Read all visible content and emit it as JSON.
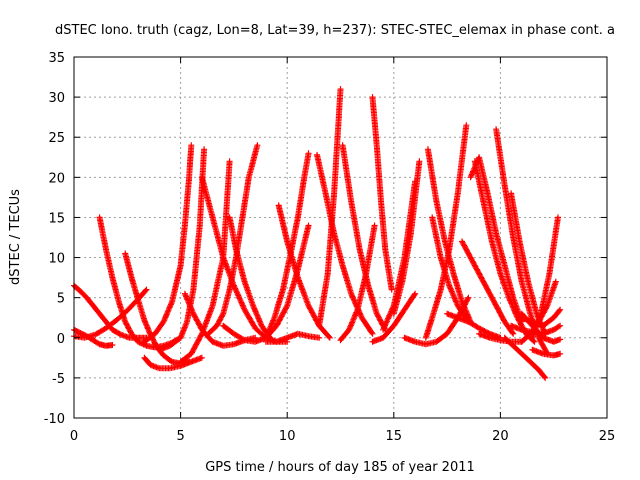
{
  "chart_data": {
    "type": "scatter",
    "title": "dSTEC Iono. truth (cagz, Lon=8, Lat=39, h=237): STEC-STEC_elemax in phase cont. a",
    "xlabel": "GPS time / hours of day 185 of year 2011",
    "ylabel": "dSTEC  / TECUs",
    "xlim": [
      0,
      25
    ],
    "ylim": [
      -10,
      35
    ],
    "xticks": [
      0,
      5,
      10,
      15,
      20,
      25
    ],
    "yticks": [
      -10,
      -5,
      0,
      5,
      10,
      15,
      20,
      25,
      30,
      35
    ],
    "grid": true,
    "marker": "+",
    "color": "#ff0000",
    "series": [
      {
        "x": [
          0.0,
          0.3,
          0.6,
          0.9,
          1.2,
          1.5,
          1.8,
          2.2,
          2.6,
          3.0,
          3.4
        ],
        "y": [
          6.5,
          5.8,
          5.0,
          4.0,
          3.0,
          2.0,
          1.0,
          0.4,
          0.0,
          0.0,
          0.0
        ]
      },
      {
        "x": [
          0.0,
          0.3,
          0.6,
          0.9,
          1.2,
          1.5,
          1.8
        ],
        "y": [
          1.0,
          0.6,
          0.2,
          -0.3,
          -0.8,
          -1.0,
          -0.9
        ]
      },
      {
        "x": [
          0.0,
          0.5,
          1.0,
          1.5,
          2.0,
          2.5,
          3.0,
          3.4
        ],
        "y": [
          0.2,
          0.0,
          0.4,
          1.2,
          2.2,
          3.4,
          4.8,
          6.0
        ]
      },
      {
        "x": [
          1.2,
          1.5,
          1.8,
          2.1,
          2.4,
          2.7,
          3.0,
          3.4,
          3.8,
          4.2,
          4.6,
          5.0
        ],
        "y": [
          15.0,
          11.0,
          7.5,
          4.5,
          2.0,
          0.5,
          -0.5,
          -1.0,
          -1.2,
          -1.0,
          -0.6,
          0.0
        ]
      },
      {
        "x": [
          2.4,
          2.7,
          3.0,
          3.3,
          3.6,
          3.9,
          4.2,
          4.6,
          5.0,
          5.4
        ],
        "y": [
          10.5,
          7.5,
          4.8,
          2.2,
          0.3,
          -1.2,
          -2.2,
          -3.0,
          -3.2,
          -3.0
        ]
      },
      {
        "x": [
          3.3,
          3.6,
          4.0,
          4.5,
          5.0,
          5.5,
          6.0
        ],
        "y": [
          -2.5,
          -3.4,
          -3.8,
          -3.8,
          -3.5,
          -3.0,
          -2.5
        ]
      },
      {
        "x": [
          3.3,
          3.8,
          4.2,
          4.6,
          5.0,
          5.2,
          5.4,
          5.5
        ],
        "y": [
          -0.5,
          0.5,
          2.0,
          4.5,
          9.0,
          14.0,
          20.0,
          24.0
        ]
      },
      {
        "x": [
          4.0,
          4.5,
          5.0,
          5.3,
          5.6,
          5.9,
          6.1
        ],
        "y": [
          -1.5,
          -1.0,
          0.0,
          2.0,
          6.0,
          14.0,
          23.5
        ]
      },
      {
        "x": [
          5.0,
          5.5,
          6.0,
          6.5,
          7.0,
          7.3
        ],
        "y": [
          -3.0,
          -2.0,
          0.5,
          4.0,
          10.0,
          22.0
        ]
      },
      {
        "x": [
          5.2,
          5.6,
          6.0,
          6.5,
          7.0,
          7.5,
          8.0,
          8.5
        ],
        "y": [
          5.5,
          3.0,
          1.0,
          -0.5,
          -1.0,
          -0.8,
          -0.3,
          0.0
        ]
      },
      {
        "x": [
          6.3,
          6.7,
          7.0,
          7.3,
          7.6,
          7.9,
          8.2,
          8.6
        ],
        "y": [
          0.5,
          1.5,
          3.0,
          6.0,
          10.0,
          15.0,
          20.0,
          24.0
        ]
      },
      {
        "x": [
          7.3,
          7.6,
          8.0,
          8.4,
          8.8,
          9.2
        ],
        "y": [
          15.0,
          11.0,
          7.0,
          4.0,
          1.5,
          0.0
        ]
      },
      {
        "x": [
          6.0,
          6.5,
          7.0,
          7.5,
          8.0,
          8.5,
          9.0,
          9.5,
          10.0
        ],
        "y": [
          20.0,
          15.0,
          10.0,
          6.5,
          3.5,
          1.2,
          0.0,
          -0.5,
          -0.5
        ]
      },
      {
        "x": [
          7.0,
          7.5,
          8.0,
          8.5,
          9.0,
          9.5,
          10.0,
          10.5,
          11.0
        ],
        "y": [
          1.5,
          0.5,
          -0.3,
          -0.5,
          0.0,
          1.5,
          4.0,
          8.5,
          14.0
        ]
      },
      {
        "x": [
          9.0,
          9.4,
          9.8,
          10.2,
          10.5,
          10.8,
          11.0
        ],
        "y": [
          0.0,
          2.5,
          6.0,
          11.0,
          15.0,
          20.0,
          23.0
        ]
      },
      {
        "x": [
          9.6,
          10.0,
          10.5,
          11.0,
          11.5,
          12.0
        ],
        "y": [
          16.5,
          12.0,
          7.5,
          4.0,
          1.5,
          0.0
        ]
      },
      {
        "x": [
          9.0,
          9.5,
          10.0,
          10.5,
          11.0,
          11.5
        ],
        "y": [
          -0.5,
          -0.5,
          0.0,
          0.5,
          0.2,
          0.0
        ]
      },
      {
        "x": [
          11.5,
          11.9,
          12.2,
          12.5
        ],
        "y": [
          1.5,
          8.0,
          18.0,
          31.0
        ]
      },
      {
        "x": [
          11.4,
          11.8,
          12.2,
          12.6,
          13.0,
          13.5,
          14.0
        ],
        "y": [
          22.8,
          18.0,
          13.0,
          9.0,
          5.5,
          2.5,
          0.5
        ]
      },
      {
        "x": [
          12.5,
          12.9,
          13.3,
          13.7,
          14.1
        ],
        "y": [
          -0.3,
          1.0,
          3.5,
          8.0,
          14.0
        ]
      },
      {
        "x": [
          12.6,
          13.0,
          13.4,
          13.8,
          14.2,
          14.6
        ],
        "y": [
          24.0,
          17.0,
          11.0,
          6.5,
          3.0,
          1.0
        ]
      },
      {
        "x": [
          14.0,
          14.2,
          14.4,
          14.6,
          14.9
        ],
        "y": [
          30.0,
          24.0,
          17.0,
          11.0,
          6.0
        ]
      },
      {
        "x": [
          14.0,
          14.5,
          15.0,
          15.5,
          16.0
        ],
        "y": [
          -0.5,
          0.0,
          1.5,
          3.5,
          5.5
        ]
      },
      {
        "x": [
          14.5,
          15.0,
          15.5,
          16.0
        ],
        "y": [
          1.0,
          4.0,
          10.0,
          19.5
        ]
      },
      {
        "x": [
          15.0,
          15.4,
          15.8,
          16.2
        ],
        "y": [
          3.0,
          7.0,
          13.0,
          22.0
        ]
      },
      {
        "x": [
          15.5,
          16.0,
          16.5,
          17.0,
          17.5,
          18.0,
          18.5
        ],
        "y": [
          0.0,
          -0.5,
          -0.8,
          -0.5,
          0.5,
          2.5,
          5.0
        ]
      },
      {
        "x": [
          16.5,
          16.8,
          17.2,
          17.6,
          18.0,
          18.4
        ],
        "y": [
          0.0,
          2.5,
          6.0,
          11.0,
          18.0,
          26.5
        ]
      },
      {
        "x": [
          16.6,
          17.0,
          17.4,
          17.8,
          18.2,
          18.6
        ],
        "y": [
          23.5,
          17.0,
          12.0,
          8.0,
          4.5,
          2.0
        ]
      },
      {
        "x": [
          16.8,
          17.2,
          17.6,
          18.0,
          18.5
        ],
        "y": [
          15.0,
          10.0,
          6.5,
          4.0,
          2.0
        ]
      },
      {
        "x": [
          18.2,
          18.6,
          19.0,
          19.4,
          19.8,
          20.2,
          20.6
        ],
        "y": [
          12.0,
          10.0,
          8.0,
          6.0,
          4.0,
          2.0,
          0.5
        ]
      },
      {
        "x": [
          17.5,
          18.0,
          18.5,
          19.0,
          19.5,
          20.0
        ],
        "y": [
          3.0,
          2.5,
          2.0,
          1.2,
          0.5,
          0.0
        ]
      },
      {
        "x": [
          18.6,
          19.0,
          19.4,
          19.8,
          20.2,
          20.6,
          21.0
        ],
        "y": [
          20.0,
          22.5,
          18.0,
          13.0,
          9.0,
          5.0,
          2.0
        ]
      },
      {
        "x": [
          18.8,
          19.2,
          19.6,
          20.0,
          20.4,
          20.8,
          21.2,
          21.6
        ],
        "y": [
          22.0,
          17.0,
          12.0,
          8.0,
          5.0,
          2.5,
          0.5,
          -0.5
        ]
      },
      {
        "x": [
          19.8,
          20.2,
          20.6,
          21.0,
          21.4,
          21.8,
          22.2
        ],
        "y": [
          26.0,
          19.0,
          12.5,
          7.0,
          3.0,
          0.0,
          -2.0
        ]
      },
      {
        "x": [
          20.2,
          20.6,
          21.0,
          21.4,
          21.8,
          22.1
        ],
        "y": [
          0.0,
          -1.0,
          -2.0,
          -3.0,
          -4.0,
          -5.0
        ]
      },
      {
        "x": [
          20.5,
          20.9,
          21.3,
          21.7,
          22.1
        ],
        "y": [
          18.0,
          12.0,
          7.0,
          3.0,
          0.5
        ]
      },
      {
        "x": [
          21.0,
          21.4,
          21.8,
          22.2,
          22.6
        ],
        "y": [
          -0.5,
          0.5,
          2.0,
          4.0,
          7.0
        ]
      },
      {
        "x": [
          21.5,
          21.9,
          22.3,
          22.7
        ],
        "y": [
          0.0,
          3.0,
          8.0,
          15.0
        ]
      },
      {
        "x": [
          21.5,
          22.0,
          22.5,
          22.8
        ],
        "y": [
          -1.5,
          -2.0,
          -2.2,
          -2.0
        ]
      },
      {
        "x": [
          21.0,
          21.5,
          22.0,
          22.5,
          22.8
        ],
        "y": [
          3.0,
          1.5,
          0.0,
          -0.5,
          -0.2
        ]
      },
      {
        "x": [
          20.5,
          21.0,
          21.5,
          22.0,
          22.5,
          22.8
        ],
        "y": [
          1.5,
          1.0,
          0.7,
          0.5,
          1.0,
          1.5
        ]
      },
      {
        "x": [
          21.0,
          21.5,
          22.0,
          22.5,
          22.8
        ],
        "y": [
          2.5,
          2.0,
          1.5,
          2.5,
          3.5
        ]
      },
      {
        "x": [
          19.0,
          19.5,
          20.0,
          20.5,
          21.0
        ],
        "y": [
          0.5,
          0.0,
          -0.3,
          -0.5,
          -0.5
        ]
      }
    ]
  }
}
